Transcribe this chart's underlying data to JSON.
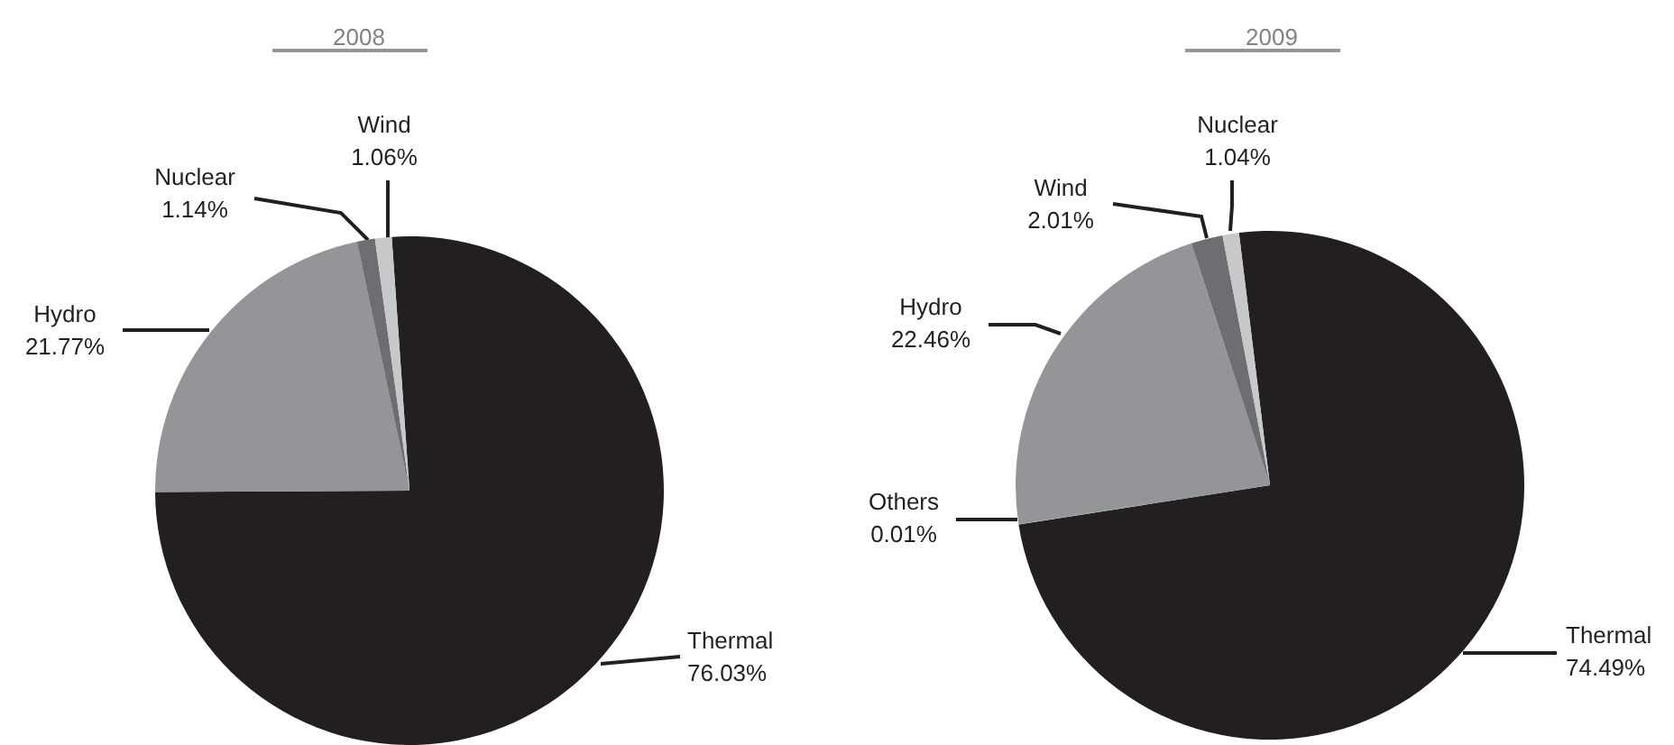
{
  "chart_data": [
    {
      "type": "pie",
      "title": "2008",
      "categories": [
        "Thermal",
        "Hydro",
        "Nuclear",
        "Wind"
      ],
      "values": [
        76.03,
        21.77,
        1.14,
        1.06
      ],
      "value_labels": [
        "76.03%",
        "21.77%",
        "1.14%",
        "1.06%"
      ],
      "colors": [
        "#231f20",
        "#939598",
        "#6d6e71",
        "#c7c8ca"
      ]
    },
    {
      "type": "pie",
      "title": "2009",
      "categories": [
        "Thermal",
        "Others",
        "Hydro",
        "Wind",
        "Nuclear"
      ],
      "values": [
        74.49,
        0.01,
        22.46,
        2.01,
        1.04
      ],
      "value_labels": [
        "74.49%",
        "0.01%",
        "22.46%",
        "2.01%",
        "1.04%"
      ],
      "colors": [
        "#231f20",
        "#d1d3d4",
        "#939598",
        "#6d6e71",
        "#c7c8ca"
      ]
    }
  ]
}
